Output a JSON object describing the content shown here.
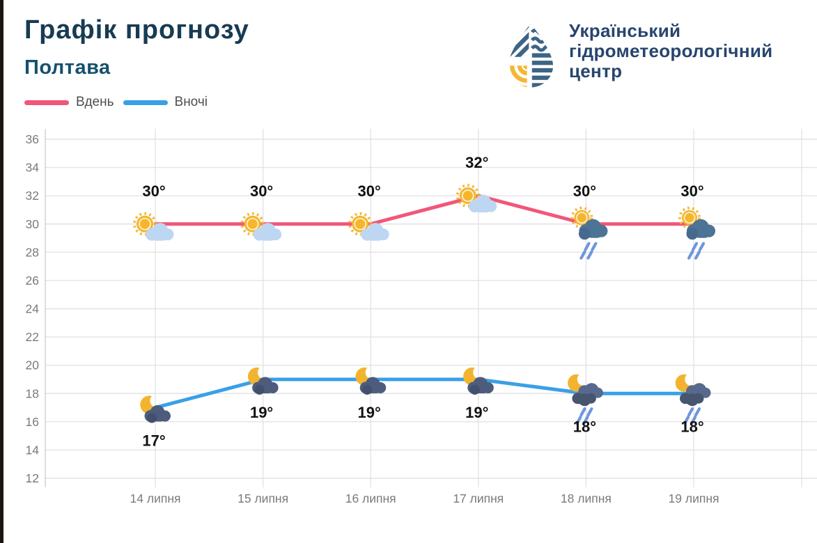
{
  "header": {
    "title": "Графік прогнозу",
    "subtitle": "Полтава"
  },
  "legend": [
    {
      "label": "Вдень",
      "color": "#f2567a"
    },
    {
      "label": "Вночі",
      "color": "#3aa0e6"
    }
  ],
  "logo": {
    "org_name_lines": [
      "Український",
      "гідрометеорологічний",
      "центр"
    ],
    "icon": "uhmc-water-drop-logo",
    "text_color": "#27456e",
    "blue": "#3d6486",
    "yellow": "#f3b733"
  },
  "chart_data": {
    "type": "line",
    "title": "Графік прогнозу — Полтава",
    "categories": [
      "14 липня",
      "15 липня",
      "16 липня",
      "17 липня",
      "18 липня",
      "19 липня"
    ],
    "unit": "°",
    "y_axis": {
      "min": 12,
      "max": 36,
      "step": 2
    },
    "grid": true,
    "legend_position": "top-left",
    "series": [
      {
        "name": "Вдень",
        "color": "#f2567a",
        "values": [
          30,
          30,
          30,
          32,
          30,
          30
        ],
        "icons": [
          "sun-cloud",
          "sun-cloud",
          "sun-cloud",
          "sun-cloud",
          "sun-rain",
          "sun-rain"
        ],
        "label_position": "above"
      },
      {
        "name": "Вночі",
        "color": "#3aa0e6",
        "values": [
          17,
          19,
          19,
          19,
          18,
          18
        ],
        "icons": [
          "moon-cloud",
          "moon-cloud",
          "moon-cloud",
          "moon-cloud",
          "moon-rain",
          "moon-rain"
        ],
        "label_position": "below"
      }
    ],
    "colors": {
      "gridline": "#e3e3e3",
      "axis_line": "#cfcfcf",
      "tick_text": "#7a7a7a",
      "data_label": "#111111"
    }
  }
}
